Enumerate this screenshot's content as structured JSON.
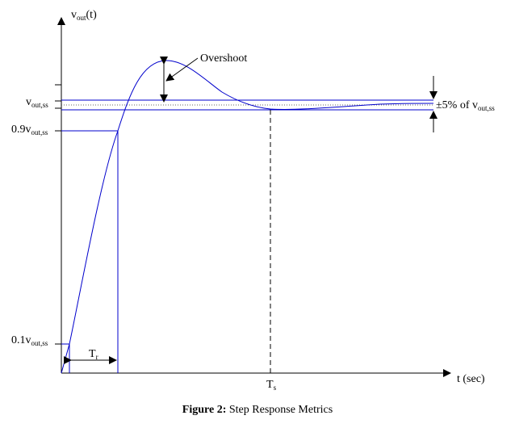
{
  "y_axis": {
    "label": "v",
    "label_sub": "out",
    "label_suffix": "(t)"
  },
  "x_axis": {
    "label": "t (sec)"
  },
  "levels": {
    "steady_state": {
      "prefix": "v",
      "sub": "out,ss"
    },
    "ninety": {
      "prefix": "0.9v",
      "sub": "out,ss"
    },
    "ten": {
      "prefix": "0.1v",
      "sub": "out,ss"
    }
  },
  "band": {
    "prefix": "±5% of v",
    "sub": "out,ss"
  },
  "annotations": {
    "overshoot": "Overshoot",
    "rise_time": {
      "main": "T",
      "sub": "r"
    },
    "settling_time": {
      "main": "T",
      "sub": "s"
    }
  },
  "caption": {
    "bold": "Figure 2:",
    "text": " Step Response Metrics"
  },
  "colors": {
    "curve": "#0000cc",
    "lines": "#0000cc",
    "axes": "#000000"
  }
}
